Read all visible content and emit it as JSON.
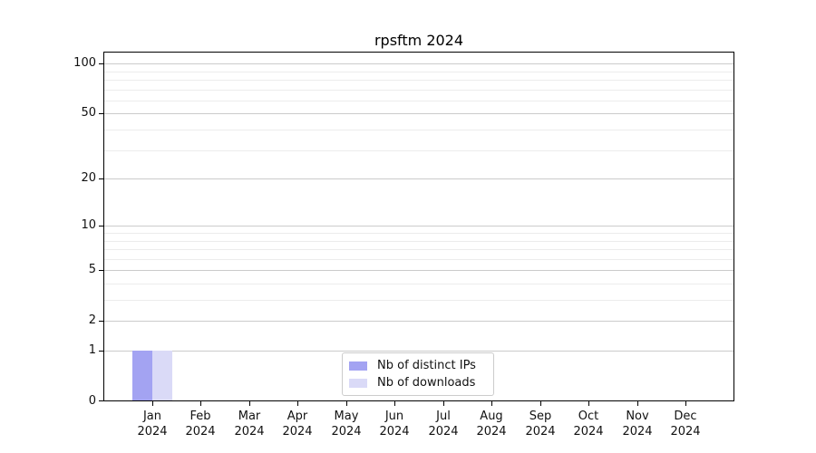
{
  "chart_data": {
    "type": "bar",
    "title": "rpsftm 2024",
    "categories": [
      "Jan",
      "Feb",
      "Mar",
      "Apr",
      "May",
      "Jun",
      "Jul",
      "Aug",
      "Sep",
      "Oct",
      "Nov",
      "Dec"
    ],
    "x_year_label": "2024",
    "series": [
      {
        "name": "Nb of distinct IPs",
        "color": "#a3a3f2",
        "values": [
          1,
          0,
          0,
          0,
          0,
          0,
          0,
          0,
          0,
          0,
          0,
          0
        ]
      },
      {
        "name": "Nb of downloads",
        "color": "#dadaf7",
        "values": [
          1,
          0,
          0,
          0,
          0,
          0,
          0,
          0,
          0,
          0,
          0,
          0
        ]
      }
    ],
    "yaxis": {
      "scale": "log1p",
      "max": 118,
      "ticks": [
        0,
        1,
        2,
        5,
        10,
        20,
        50,
        100
      ],
      "minor_ticks": [
        3,
        4,
        6,
        7,
        8,
        9,
        30,
        40,
        60,
        70,
        80,
        90
      ]
    },
    "xlabel": "",
    "ylabel": "",
    "legend_position": "bottom-center",
    "grid": {
      "major_color": "#cbcbcb",
      "minor_color": "#ececec"
    }
  }
}
